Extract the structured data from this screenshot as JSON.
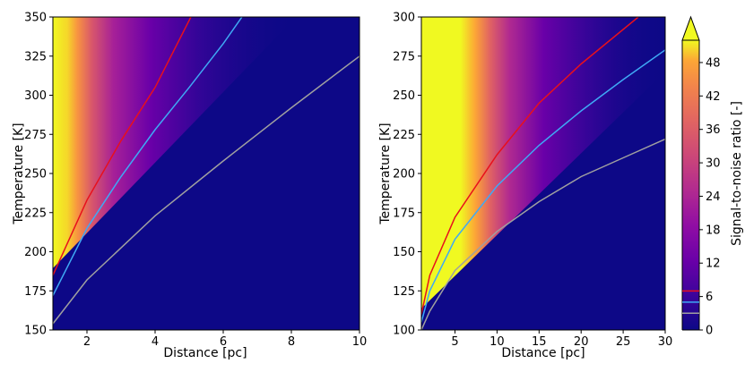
{
  "chart_data": [
    {
      "type": "heatmap",
      "xlabel": "Distance [pc]",
      "ylabel": "Temperature [K]",
      "xlim": [
        1,
        10
      ],
      "ylim": [
        150,
        350
      ],
      "xticks": [
        2,
        4,
        6,
        8,
        10
      ],
      "yticks": [
        150,
        175,
        200,
        225,
        250,
        275,
        300,
        325,
        350
      ],
      "contour_series": [
        {
          "color": "#e8101c",
          "x": [
            1.0,
            2.0,
            3.0,
            4.0,
            5.05
          ],
          "y": [
            185,
            233,
            271,
            305,
            350
          ]
        },
        {
          "color": "#3fa9f5",
          "x": [
            1.0,
            2.0,
            3.0,
            4.0,
            5.0,
            6.0,
            6.55
          ],
          "y": [
            172,
            215,
            248,
            278,
            305,
            333,
            350
          ]
        },
        {
          "color": "#a0a0a0",
          "x": [
            1.0,
            2.0,
            4.0,
            6.0,
            8.0,
            10.0
          ],
          "y": [
            154,
            182,
            223,
            258,
            292,
            325
          ]
        }
      ]
    },
    {
      "type": "heatmap",
      "xlabel": "Distance [pc]",
      "ylabel": "Temperature [K]",
      "xlim": [
        1,
        30
      ],
      "ylim": [
        100,
        300
      ],
      "xticks": [
        5,
        10,
        15,
        20,
        25,
        30
      ],
      "yticks": [
        100,
        125,
        150,
        175,
        200,
        225,
        250,
        275,
        300
      ],
      "contour_series": [
        {
          "color": "#e8101c",
          "x": [
            1.0,
            2.0,
            5.0,
            10.0,
            15.0,
            20.0,
            26.8
          ],
          "y": [
            110,
            135,
            172,
            212,
            245,
            270,
            300
          ]
        },
        {
          "color": "#3fa9f5",
          "x": [
            1.0,
            2.0,
            5.0,
            10.0,
            15.0,
            20.0,
            25.0,
            30.0
          ],
          "y": [
            105,
            125,
            158,
            192,
            218,
            240,
            260,
            279
          ]
        },
        {
          "color": "#a0a0a0",
          "x": [
            1.0,
            2.0,
            5.0,
            10.0,
            15.0,
            20.0,
            25.0,
            30.0
          ],
          "y": [
            100,
            112,
            138,
            163,
            182,
            198,
            210,
            222
          ]
        }
      ]
    }
  ],
  "colorbar": {
    "label": "Signal-to-noise ratio [-]",
    "ticks": [
      0,
      6,
      12,
      18,
      24,
      30,
      36,
      42,
      48
    ],
    "range": [
      0,
      52
    ],
    "extend": "max",
    "contour_levels": [
      {
        "value": 3,
        "color": "#a0a0a0"
      },
      {
        "value": 5,
        "color": "#3fa9f5"
      },
      {
        "value": 7,
        "color": "#e8101c"
      }
    ]
  }
}
